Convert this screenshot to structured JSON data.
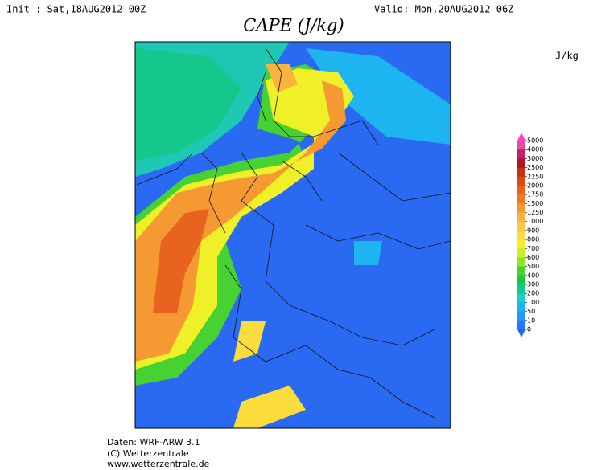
{
  "header": {
    "init": "Init : Sat,18AUG2012 00Z",
    "valid": "Valid: Mon,20AUG2012 06Z",
    "title": "CAPE (J/kg)"
  },
  "colorbar": {
    "unit": "J/kg",
    "levels": [
      5000,
      4000,
      3000,
      2500,
      2250,
      2000,
      1750,
      1500,
      1250,
      1000,
      900,
      800,
      700,
      600,
      500,
      400,
      300,
      200,
      100,
      50,
      10,
      0
    ],
    "colors": [
      "#e0509a",
      "#c81e6e",
      "#b01428",
      "#c83010",
      "#dc4a10",
      "#e8641e",
      "#f07828",
      "#f59a32",
      "#f8b43c",
      "#fac846",
      "#fadc3c",
      "#f0f028",
      "#c8f028",
      "#8ce628",
      "#46d232",
      "#1ec83c",
      "#14c88c",
      "#14d2c8",
      "#1eb4f0",
      "#2896ff",
      "#2878ff"
    ],
    "top_color": "#ff40c8",
    "bottom_color": "#1e64ff"
  },
  "footer": [
    "Daten: WRF-ARW 3.1",
    "(C) Wetterzentrale",
    "www.wetterzentrale.de"
  ]
}
